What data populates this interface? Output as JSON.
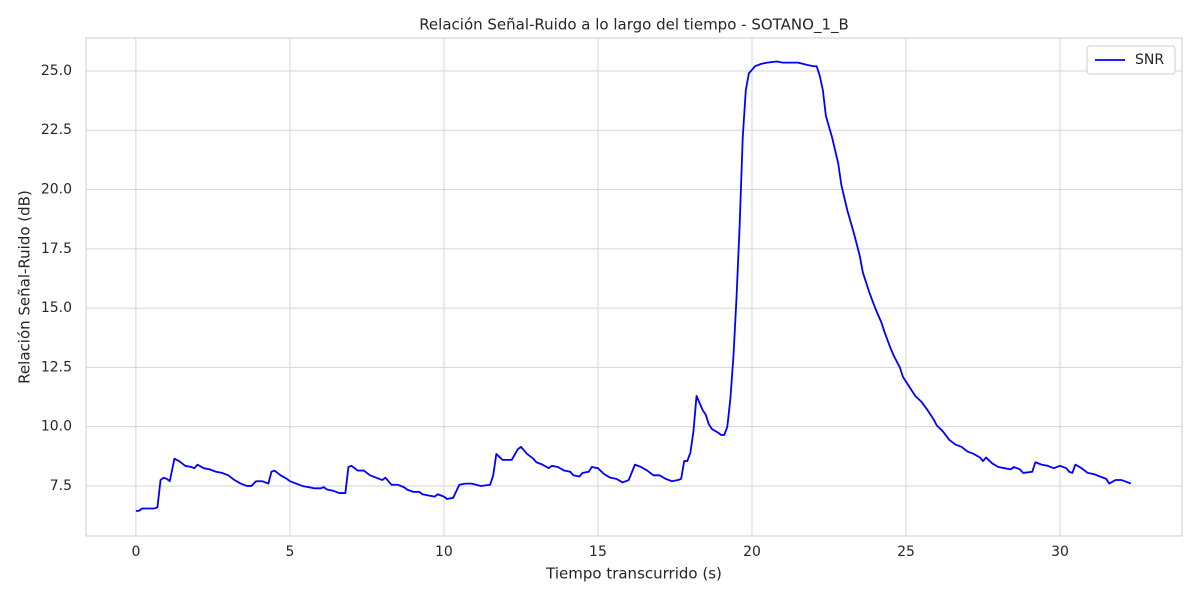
{
  "chart_data": {
    "type": "line",
    "title": "Relación Señal-Ruido a lo largo del tiempo - SOTANO_1_B",
    "x_label": "Tiempo transcurrido (s)",
    "y_label": "Relación Señal-Ruido (dB)",
    "x": [
      0,
      0.1,
      0.2,
      0.4,
      0.6,
      0.7,
      0.8,
      0.9,
      1.0,
      1.1,
      1.25,
      1.4,
      1.6,
      1.8,
      1.9,
      2.0,
      2.2,
      2.4,
      2.6,
      2.8,
      3.0,
      3.2,
      3.4,
      3.6,
      3.75,
      3.9,
      4.1,
      4.3,
      4.4,
      4.5,
      4.7,
      4.9,
      5.0,
      5.2,
      5.4,
      5.6,
      5.8,
      6.0,
      6.1,
      6.2,
      6.4,
      6.6,
      6.8,
      6.9,
      7.0,
      7.2,
      7.4,
      7.6,
      7.8,
      8.0,
      8.1,
      8.3,
      8.5,
      8.7,
      8.8,
      9.0,
      9.2,
      9.3,
      9.5,
      9.7,
      9.8,
      10.0,
      10.1,
      10.3,
      10.5,
      10.7,
      10.9,
      11.2,
      11.5,
      11.6,
      11.7,
      11.9,
      12.2,
      12.4,
      12.5,
      12.7,
      12.9,
      13.0,
      13.2,
      13.4,
      13.5,
      13.7,
      13.9,
      14.1,
      14.2,
      14.4,
      14.5,
      14.7,
      14.8,
      15.0,
      15.2,
      15.4,
      15.6,
      15.8,
      16.0,
      16.2,
      16.4,
      16.6,
      16.8,
      17.0,
      17.2,
      17.4,
      17.6,
      17.7,
      17.8,
      17.9,
      18.0,
      18.1,
      18.2,
      18.3,
      18.4,
      18.5,
      18.6,
      18.7,
      18.9,
      19.0,
      19.1,
      19.2,
      19.3,
      19.4,
      19.5,
      19.6,
      19.7,
      19.8,
      19.9,
      20.1,
      20.3,
      20.5,
      20.8,
      21.0,
      21.3,
      21.5,
      21.8,
      22.0,
      22.1,
      22.2,
      22.3,
      22.4,
      22.6,
      22.8,
      22.9,
      23.1,
      23.3,
      23.5,
      23.6,
      23.8,
      24.0,
      24.2,
      24.3,
      24.5,
      24.6,
      24.8,
      24.9,
      25.1,
      25.3,
      25.5,
      25.7,
      25.9,
      26.0,
      26.2,
      26.4,
      26.6,
      26.8,
      27.0,
      27.2,
      27.4,
      27.5,
      27.6,
      27.8,
      28.0,
      28.2,
      28.4,
      28.5,
      28.7,
      28.8,
      29.1,
      29.2,
      29.4,
      29.6,
      29.8,
      30.0,
      30.2,
      30.3,
      30.4,
      30.5,
      30.7,
      30.9,
      31.1,
      31.3,
      31.5,
      31.6,
      31.8,
      32.0,
      32.1,
      32.3
    ],
    "series": [
      {
        "name": "SNR",
        "color": "#0000ff",
        "values": [
          6.45,
          6.45,
          6.55,
          6.55,
          6.55,
          6.6,
          7.75,
          7.85,
          7.8,
          7.7,
          8.65,
          8.55,
          8.35,
          8.3,
          8.25,
          8.4,
          8.25,
          8.2,
          8.1,
          8.05,
          7.95,
          7.75,
          7.6,
          7.5,
          7.5,
          7.7,
          7.7,
          7.6,
          8.1,
          8.15,
          7.95,
          7.8,
          7.7,
          7.6,
          7.5,
          7.45,
          7.4,
          7.4,
          7.45,
          7.35,
          7.3,
          7.2,
          7.2,
          8.3,
          8.35,
          8.15,
          8.15,
          7.95,
          7.85,
          7.75,
          7.85,
          7.55,
          7.55,
          7.45,
          7.35,
          7.25,
          7.25,
          7.15,
          7.1,
          7.05,
          7.15,
          7.05,
          6.95,
          7.0,
          7.55,
          7.6,
          7.6,
          7.5,
          7.55,
          7.95,
          8.85,
          8.6,
          8.6,
          9.05,
          9.15,
          8.85,
          8.65,
          8.5,
          8.4,
          8.25,
          8.35,
          8.3,
          8.15,
          8.1,
          7.95,
          7.9,
          8.05,
          8.1,
          8.3,
          8.25,
          8.0,
          7.85,
          7.8,
          7.65,
          7.75,
          8.4,
          8.3,
          8.15,
          7.95,
          7.95,
          7.8,
          7.7,
          7.75,
          7.8,
          8.55,
          8.55,
          8.9,
          9.8,
          11.3,
          11.0,
          10.7,
          10.5,
          10.1,
          9.9,
          9.75,
          9.65,
          9.65,
          10.0,
          11.2,
          13.0,
          15.5,
          18.5,
          22.2,
          24.2,
          24.9,
          25.2,
          25.3,
          25.35,
          25.4,
          25.35,
          25.35,
          25.35,
          25.25,
          25.2,
          25.2,
          24.8,
          24.2,
          23.1,
          22.2,
          21.1,
          20.2,
          19.1,
          18.2,
          17.2,
          16.5,
          15.7,
          15.0,
          14.4,
          14.0,
          13.3,
          13.0,
          12.5,
          12.1,
          11.7,
          11.3,
          11.05,
          10.7,
          10.3,
          10.05,
          9.8,
          9.45,
          9.25,
          9.15,
          8.95,
          8.85,
          8.7,
          8.55,
          8.7,
          8.45,
          8.3,
          8.25,
          8.2,
          8.3,
          8.2,
          8.05,
          8.1,
          8.5,
          8.4,
          8.35,
          8.25,
          8.35,
          8.25,
          8.1,
          8.05,
          8.4,
          8.25,
          8.05,
          8.0,
          7.9,
          7.8,
          7.6,
          7.75,
          7.75,
          7.7,
          7.6
        ]
      }
    ],
    "xlim": [
      -1.62,
      33.96
    ],
    "ylim": [
      5.39,
      26.39
    ],
    "xticks": [
      0,
      5,
      10,
      15,
      20,
      25,
      30
    ],
    "yticks": [
      7.5,
      {
        "value": 10,
        "label": "10.0"
      },
      12.5,
      {
        "value": 15,
        "label": "15.0"
      },
      17.5,
      {
        "value": 20,
        "label": "20.0"
      },
      22.5,
      {
        "value": 25,
        "label": "25.0"
      }
    ],
    "grid": true,
    "legend": "upper right"
  }
}
